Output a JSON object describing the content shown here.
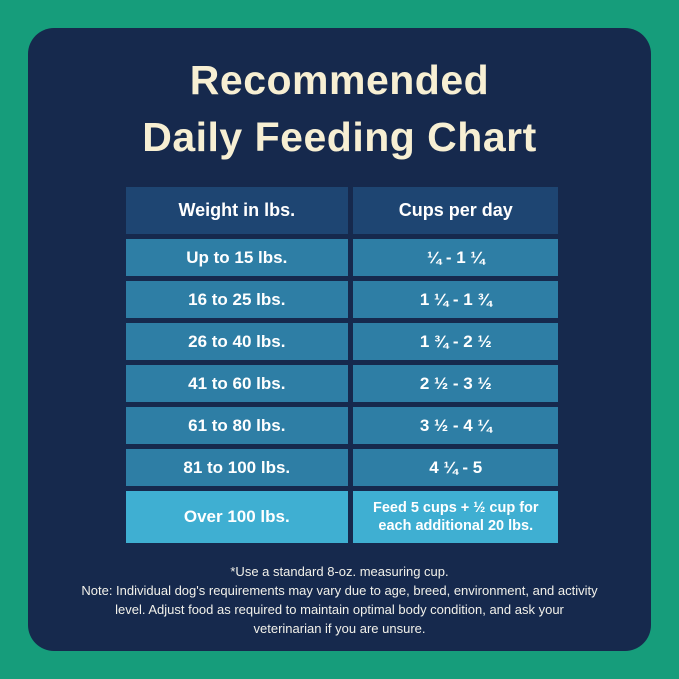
{
  "colors": {
    "background_green": "#169d7b",
    "panel_navy": "#16294d",
    "title_cream": "#f7efd3",
    "header_row_blue": "#1e4572",
    "data_row_blue": "#2e7ea5",
    "highlight_row_cyan": "#3fafd2",
    "table_text": "#ffffff"
  },
  "title": {
    "line1": "Recommended",
    "line2": "Daily Feeding Chart"
  },
  "chart_data": {
    "type": "table",
    "title": "Recommended Daily Feeding Chart",
    "columns": [
      "Weight in lbs.",
      "Cups per day"
    ],
    "rows": [
      {
        "weight": "Up to 15 lbs.",
        "cups": "¼ - 1 ¼"
      },
      {
        "weight": "16 to 25 lbs.",
        "cups": "1 ¼ - 1 ¾"
      },
      {
        "weight": "26 to 40 lbs.",
        "cups": "1 ¾ - 2 ½"
      },
      {
        "weight": "41 to 60 lbs.",
        "cups": "2 ½ - 3 ½"
      },
      {
        "weight": "61 to 80 lbs.",
        "cups": "3 ½ - 4 ¼"
      },
      {
        "weight": "81 to 100 lbs.",
        "cups": "4 ¼ - 5"
      },
      {
        "weight": "Over 100 lbs.",
        "cups": "Feed 5 cups + ½ cup for each additional 20 lbs."
      }
    ],
    "layout_hints": {
      "highlighted_row_index": 6,
      "header_style": "dark-blue",
      "row_style": "steel-blue",
      "grid": "navy gaps between rows and columns"
    }
  },
  "footnotes": {
    "line1": "*Use a standard 8-oz. measuring cup.",
    "line2": "Note: Individual dog's requirements may vary due to age, breed, environment, and activity level. Adjust food as required to maintain optimal body condition, and ask your veterinarian if you are unsure."
  }
}
